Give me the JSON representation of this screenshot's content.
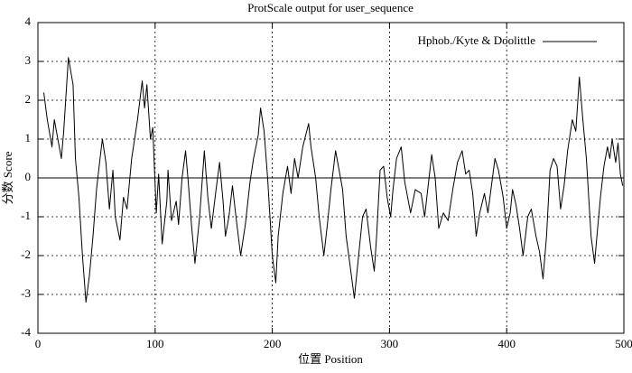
{
  "chart_data": {
    "type": "line",
    "title": "ProtScale output for user_sequence",
    "x_label": "位置 Position",
    "y_label": "分数 Score",
    "xlim": [
      0,
      500
    ],
    "ylim": [
      -4,
      4
    ],
    "xticks": [
      0,
      100,
      200,
      300,
      400,
      500
    ],
    "yticks": [
      -4,
      -3,
      -2,
      -1,
      0,
      1,
      2,
      3,
      4
    ],
    "grid": true,
    "zero_line": true,
    "legend": "top-right",
    "x": [
      5,
      8,
      12,
      14,
      20,
      22,
      26,
      30,
      32,
      35,
      38,
      41,
      44,
      47,
      50,
      53,
      55,
      58,
      61,
      64,
      66,
      70,
      73,
      76,
      80,
      85,
      89,
      91,
      93,
      96,
      98,
      101,
      103,
      106,
      110,
      111,
      114,
      118,
      120,
      123,
      126,
      128,
      131,
      134,
      138,
      142,
      145,
      148,
      152,
      155,
      158,
      160,
      163,
      166,
      169,
      173,
      177,
      181,
      184,
      188,
      190,
      193,
      196,
      198,
      200,
      203,
      205,
      209,
      213,
      216,
      219,
      222,
      226,
      231,
      233,
      237,
      240,
      244,
      247,
      250,
      254,
      257,
      260,
      263,
      267,
      270,
      273,
      277,
      280,
      284,
      287,
      289,
      292,
      295,
      298,
      301,
      303,
      306,
      310,
      313,
      318,
      322,
      327,
      330,
      333,
      336,
      339,
      342,
      346,
      350,
      354,
      358,
      362,
      365,
      368,
      371,
      374,
      377,
      381,
      384,
      387,
      390,
      393,
      397,
      400,
      403,
      405,
      408,
      411,
      414,
      418,
      421,
      425,
      428,
      431,
      434,
      437,
      440,
      443,
      446,
      449,
      452,
      456,
      459,
      462,
      465,
      468,
      470,
      472,
      475,
      477,
      480,
      483,
      486,
      488,
      490,
      493,
      495,
      497,
      499
    ],
    "series": [
      {
        "name": "Hphob./Kyte & Doolittle",
        "color": "#000000",
        "values": [
          2.2,
          1.5,
          0.8,
          1.5,
          0.5,
          1.2,
          3.1,
          2.4,
          0.5,
          -0.5,
          -2.0,
          -3.2,
          -2.5,
          -1.5,
          -0.3,
          0.5,
          1.0,
          0.4,
          -0.8,
          0.2,
          -1.0,
          -1.6,
          -0.5,
          -0.8,
          0.5,
          1.5,
          2.5,
          1.8,
          2.4,
          1.0,
          1.3,
          -0.9,
          0.1,
          -1.7,
          -0.6,
          0.2,
          -1.1,
          -0.6,
          -1.2,
          0.0,
          0.7,
          0.0,
          -1.2,
          -2.2,
          -1.0,
          0.7,
          -0.5,
          -1.3,
          -0.3,
          0.4,
          -0.6,
          -1.5,
          -1.0,
          -0.2,
          -1.0,
          -2.0,
          -1.2,
          -0.1,
          0.5,
          1.1,
          1.8,
          1.2,
          0.0,
          -1.0,
          -2.0,
          -2.7,
          -1.5,
          -0.4,
          0.3,
          -0.4,
          0.5,
          0.0,
          0.8,
          1.4,
          0.8,
          0.0,
          -1.0,
          -2.0,
          -1.2,
          -0.3,
          0.7,
          0.2,
          -0.3,
          -1.5,
          -2.4,
          -3.1,
          -2.2,
          -1.0,
          -0.8,
          -1.8,
          -2.4,
          -1.5,
          0.2,
          0.3,
          -0.5,
          -1.0,
          -0.3,
          0.5,
          0.8,
          -0.1,
          -0.9,
          -0.3,
          -0.4,
          -1.0,
          -0.2,
          0.6,
          0.0,
          -1.3,
          -0.9,
          -1.1,
          -0.3,
          0.4,
          0.7,
          0.1,
          0.2,
          -0.4,
          -1.5,
          -0.9,
          -0.4,
          -0.9,
          -0.2,
          0.5,
          0.2,
          -0.5,
          -1.3,
          -0.9,
          -0.3,
          -0.7,
          -1.3,
          -2.0,
          -1.0,
          -0.8,
          -1.5,
          -1.9,
          -2.6,
          -1.5,
          0.2,
          0.5,
          0.3,
          -0.8,
          -0.2,
          0.7,
          1.5,
          1.2,
          2.6,
          1.5,
          0.5,
          -0.5,
          -1.5,
          -2.2,
          -1.5,
          -0.5,
          0.3,
          0.8,
          0.5,
          1.0,
          0.4,
          0.9,
          0.1,
          -0.2
        ]
      }
    ]
  }
}
